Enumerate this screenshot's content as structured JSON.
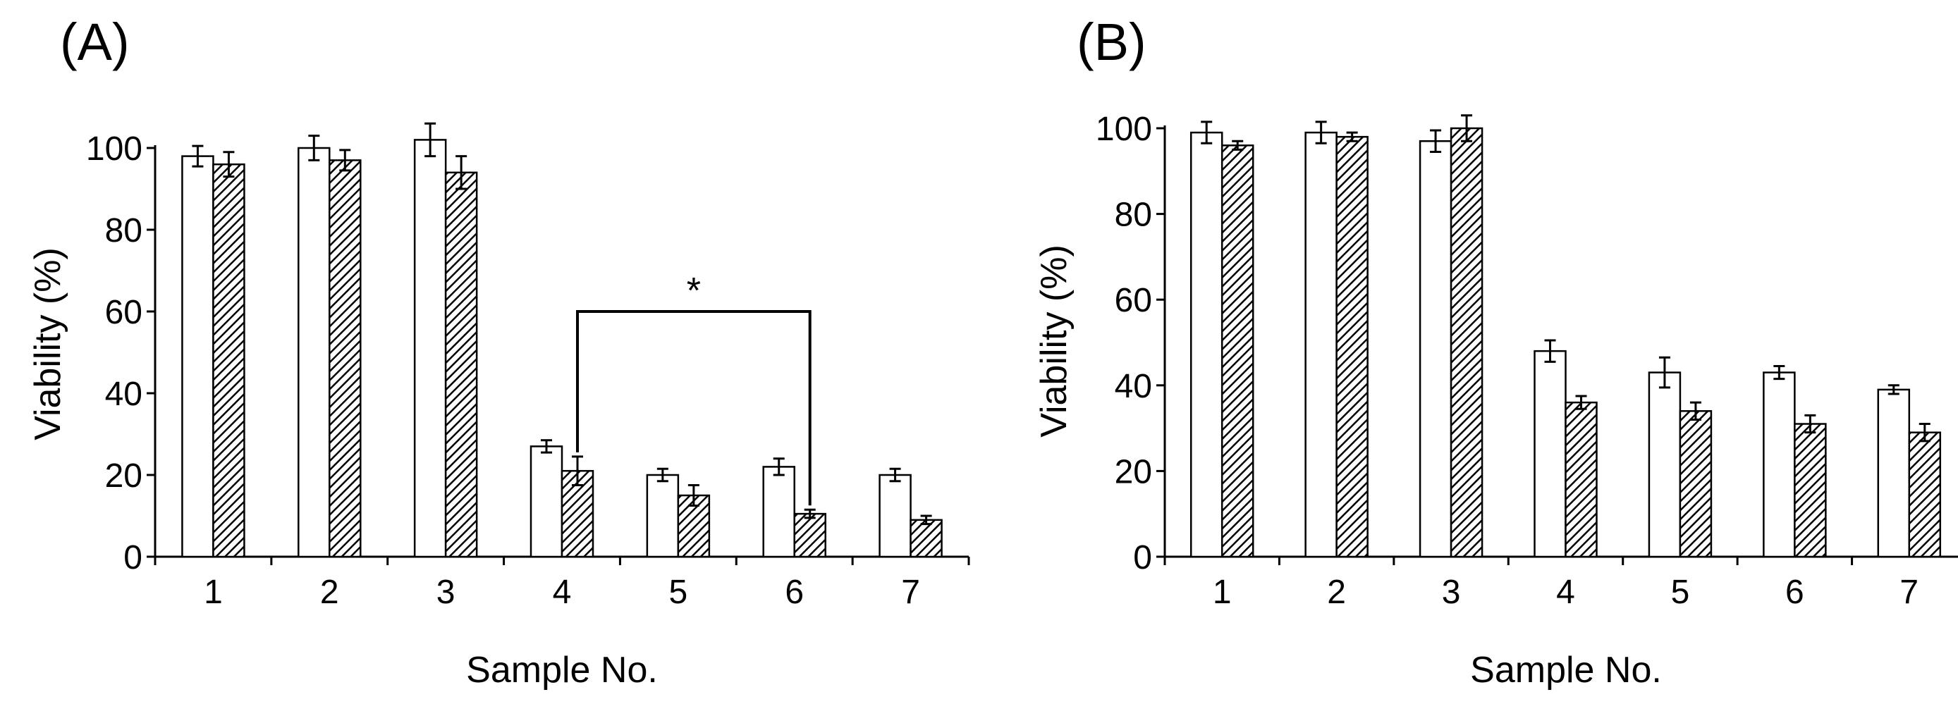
{
  "chart_data": [
    {
      "panel_label": "(A)",
      "type": "bar",
      "xlabel": "Sample No.",
      "ylabel": "Viability (%)",
      "ylim": [
        0,
        100
      ],
      "yticks": [
        "0",
        "20",
        "40",
        "60",
        "80",
        "100"
      ],
      "categories": [
        "1",
        "2",
        "3",
        "4",
        "5",
        "6",
        "7"
      ],
      "series": [
        {
          "name": "open",
          "pattern": "white",
          "values": [
            98,
            100,
            102,
            27,
            20,
            22,
            20
          ],
          "errors": [
            2.5,
            3,
            4,
            1.5,
            1.5,
            2,
            1.5
          ]
        },
        {
          "name": "hatched",
          "pattern": "hatch",
          "values": [
            96,
            97,
            94,
            21,
            15,
            10.5,
            9
          ],
          "errors": [
            3,
            2.5,
            4,
            3.5,
            2.5,
            1,
            1
          ]
        }
      ],
      "annotation": {
        "text": "*",
        "from": "4",
        "to": "6",
        "level": 60
      }
    },
    {
      "panel_label": "(B)",
      "type": "bar",
      "xlabel": "Sample No.",
      "ylabel": "Viability (%)",
      "ylim": [
        0,
        100
      ],
      "yticks": [
        "0",
        "20",
        "40",
        "60",
        "80",
        "100"
      ],
      "categories": [
        "1",
        "2",
        "3",
        "4",
        "5",
        "6",
        "7"
      ],
      "series": [
        {
          "name": "open",
          "pattern": "white",
          "values": [
            99,
            99,
            97,
            48,
            43,
            43,
            39
          ],
          "errors": [
            2.5,
            2.5,
            2.5,
            2.5,
            3.5,
            1.5,
            1
          ]
        },
        {
          "name": "hatched",
          "pattern": "hatch",
          "values": [
            96,
            98,
            100,
            36,
            34,
            31,
            29
          ],
          "errors": [
            1,
            1,
            3,
            1.5,
            2,
            2,
            2
          ]
        }
      ]
    }
  ]
}
